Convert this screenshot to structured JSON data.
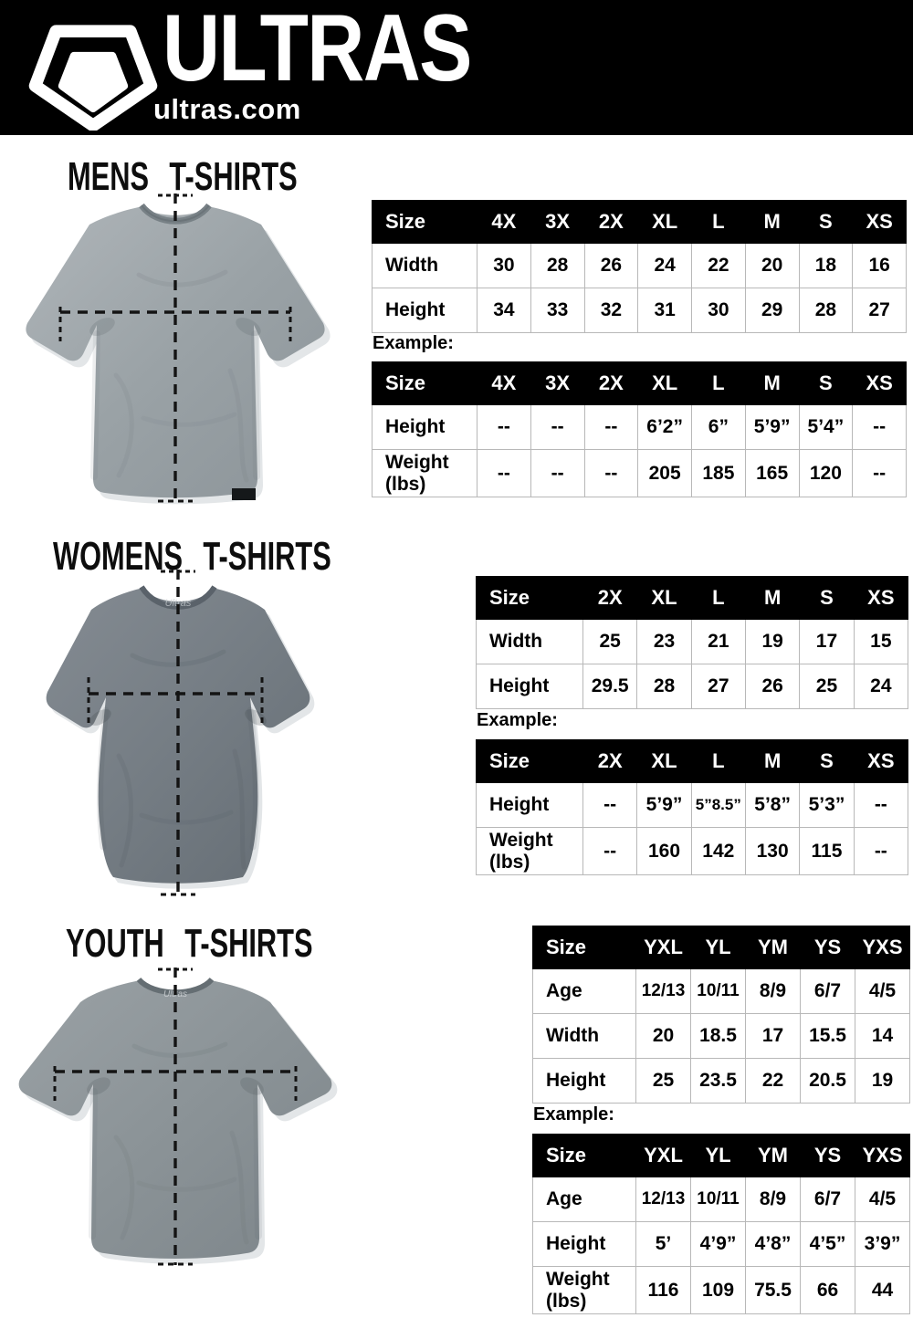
{
  "header": {
    "brand": "ULTRAS",
    "domain": "ultras.com",
    "logo_icon": "pentagon-shield-icon"
  },
  "colors": {
    "header_bg": "#000000",
    "table_header_bg": "#000000",
    "table_header_text": "#ffffff",
    "table_border": "#b8b8b8",
    "text": "#111111",
    "shirt_mens": "#9aa2a6",
    "shirt_womens": "#757d84",
    "shirt_youth": "#8b9397"
  },
  "sections": [
    {
      "id": "mens",
      "title": "MENS T-SHIRTS",
      "image": "mens-gray-tshirt-photo",
      "example_label": "Example:",
      "size_table": {
        "columns": [
          "Size",
          "4X",
          "3X",
          "2X",
          "XL",
          "L",
          "M",
          "S",
          "XS"
        ],
        "rows": [
          {
            "label": "Width",
            "values": [
              "30",
              "28",
              "26",
              "24",
              "22",
              "20",
              "18",
              "16"
            ]
          },
          {
            "label": "Height",
            "values": [
              "34",
              "33",
              "32",
              "31",
              "30",
              "29",
              "28",
              "27"
            ]
          }
        ]
      },
      "example_table": {
        "columns": [
          "Size",
          "4X",
          "3X",
          "2X",
          "XL",
          "L",
          "M",
          "S",
          "XS"
        ],
        "rows": [
          {
            "label": "Height",
            "values": [
              "--",
              "--",
              "--",
              "6’2”",
              "6”",
              "5’9”",
              "5’4”",
              "--"
            ]
          },
          {
            "label": "Weight (lbs)",
            "values": [
              "--",
              "--",
              "--",
              "205",
              "185",
              "165",
              "120",
              "--"
            ]
          }
        ]
      }
    },
    {
      "id": "womens",
      "title": "WOMENS T-SHIRTS",
      "image": "womens-gray-tshirt-photo",
      "example_label": "Example:",
      "size_table": {
        "columns": [
          "Size",
          "2X",
          "XL",
          "L",
          "M",
          "S",
          "XS"
        ],
        "rows": [
          {
            "label": "Width",
            "values": [
              "25",
              "23",
              "21",
              "19",
              "17",
              "15"
            ]
          },
          {
            "label": "Height",
            "values": [
              "29.5",
              "28",
              "27",
              "26",
              "25",
              "24"
            ]
          }
        ]
      },
      "example_table": {
        "columns": [
          "Size",
          "2X",
          "XL",
          "L",
          "M",
          "S",
          "XS"
        ],
        "rows": [
          {
            "label": "Height",
            "values": [
              "--",
              "5’9”",
              "5”8.5”",
              "5’8”",
              "5’3”",
              "--"
            ]
          },
          {
            "label": "Weight (lbs)",
            "values": [
              "--",
              "160",
              "142",
              "130",
              "115",
              "--"
            ]
          }
        ]
      }
    },
    {
      "id": "youth",
      "title": "YOUTH T-SHIRTS",
      "image": "youth-gray-tshirt-photo",
      "example_label": "Example:",
      "size_table": {
        "columns": [
          "Size",
          "YXL",
          "YL",
          "YM",
          "YS",
          "YXS"
        ],
        "rows": [
          {
            "label": "Age",
            "values": [
              "12/13",
              "10/11",
              "8/9",
              "6/7",
              "4/5"
            ]
          },
          {
            "label": "Width",
            "values": [
              "20",
              "18.5",
              "17",
              "15.5",
              "14"
            ]
          },
          {
            "label": "Height",
            "values": [
              "25",
              "23.5",
              "22",
              "20.5",
              "19"
            ]
          }
        ]
      },
      "example_table": {
        "columns": [
          "Size",
          "YXL",
          "YL",
          "YM",
          "YS",
          "YXS"
        ],
        "rows": [
          {
            "label": "Age",
            "values": [
              "12/13",
              "10/11",
              "8/9",
              "6/7",
              "4/5"
            ]
          },
          {
            "label": "Height",
            "values": [
              "5’",
              "4’9”",
              "4’8”",
              "4’5”",
              "3’9”"
            ]
          },
          {
            "label": "Weight (lbs)",
            "values": [
              "116",
              "109",
              "75.5",
              "66",
              "44"
            ]
          }
        ]
      }
    }
  ]
}
